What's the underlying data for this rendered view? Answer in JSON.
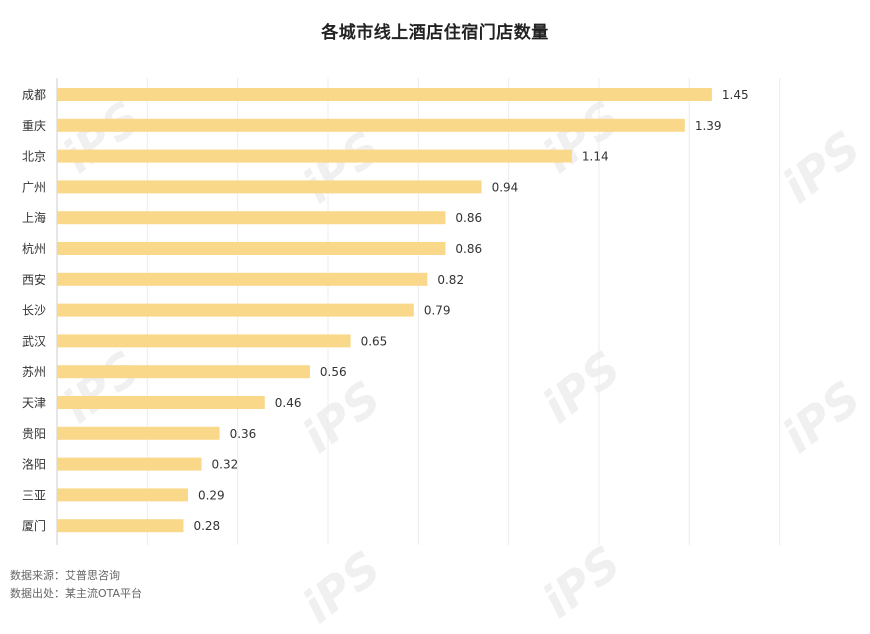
{
  "chart_data": {
    "type": "bar",
    "orientation": "horizontal",
    "title": "各城市线上酒店住宿门店数量",
    "categories": [
      "成都",
      "重庆",
      "北京",
      "广州",
      "上海",
      "杭州",
      "西安",
      "长沙",
      "武汉",
      "苏州",
      "天津",
      "贵阳",
      "洛阳",
      "三亚",
      "厦门"
    ],
    "values": [
      1.45,
      1.39,
      1.14,
      0.94,
      0.86,
      0.86,
      0.82,
      0.79,
      0.65,
      0.56,
      0.46,
      0.36,
      0.32,
      0.29,
      0.28
    ],
    "value_labels": [
      "1.45",
      "1.39",
      "1.14",
      "0.94",
      "0.86",
      "0.86",
      "0.82",
      "0.79",
      "0.65",
      "0.56",
      "0.46",
      "0.36",
      "0.32",
      "0.29",
      "0.28"
    ],
    "xlim": [
      0,
      1.8
    ],
    "grid": "vertical",
    "bar_color": "#FAD88A"
  },
  "sources": {
    "line1": "数据来源：艾普思咨询",
    "line2": "数据出处：某主流OTA平台"
  }
}
